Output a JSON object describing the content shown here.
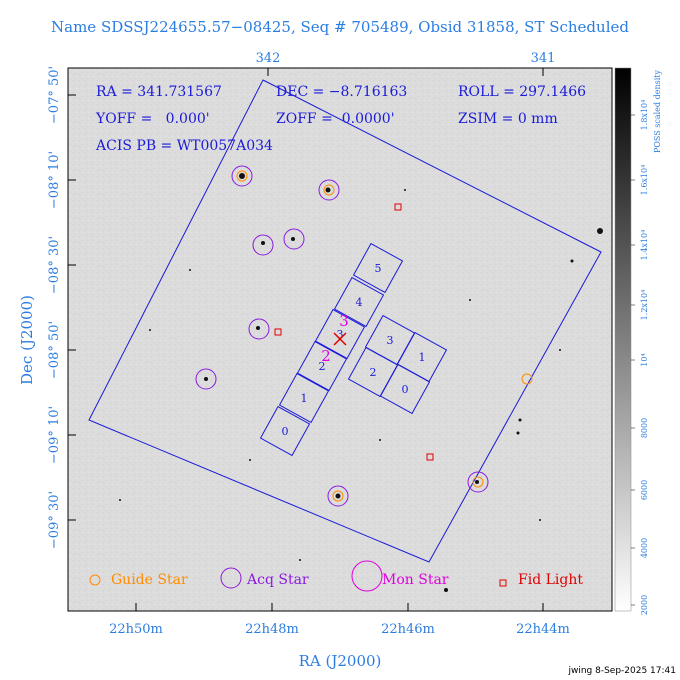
{
  "header": {
    "title": "Name SDSSJ224655.57−08425, Seq # 705489, Obsid 31858, ST Scheduled"
  },
  "info": {
    "ra": "RA = 341.731567",
    "dec": "DEC = −8.716163",
    "roll": "ROLL = 297.1466",
    "yoff": "YOFF =   0.000'",
    "zoff": "ZOFF =  0.0000'",
    "zsim": "ZSIM = 0 mm",
    "acis": "ACIS PB = WT0057A034"
  },
  "axes": {
    "xlabel": "RA (J2000)",
    "ylabel": "Dec (J2000)",
    "bottom_ticks": [
      "22h50m",
      "22h48m",
      "22h46m",
      "22h44m"
    ],
    "top_ticks": [
      "342",
      "341"
    ],
    "left_ticks": [
      "−07° 50'",
      "−08° 10'",
      "−08° 30'",
      "−08° 50'",
      "−09° 10'",
      "−09° 30'"
    ]
  },
  "colorbar": {
    "label": "POSS scaled density",
    "ticks": [
      "2000",
      "4000",
      "6000",
      "8000",
      "10⁴",
      "1.2x10⁴",
      "1.4x10⁴",
      "1.6x10⁴",
      "1.8x10⁴"
    ]
  },
  "chips": {
    "s_labels": [
      "0",
      "1",
      "2",
      "3",
      "4",
      "5"
    ],
    "i_labels": [
      "3",
      "1",
      "2",
      "0"
    ]
  },
  "aimpoint": {
    "label_3": "3",
    "label_2": "2"
  },
  "legend": {
    "guide": "Guide Star",
    "acq": "Acq Star",
    "mon": "Mon Star",
    "fid": "Fid Light"
  },
  "colors": {
    "blue": "#1a1ad8",
    "purple": "#8a1ae0",
    "orange": "#ff8c00",
    "red": "#e00000",
    "magenta": "#e000e0",
    "label": "#2a7de1"
  },
  "footer": {
    "stamp": "jwing  8-Sep-2025 17:41"
  }
}
